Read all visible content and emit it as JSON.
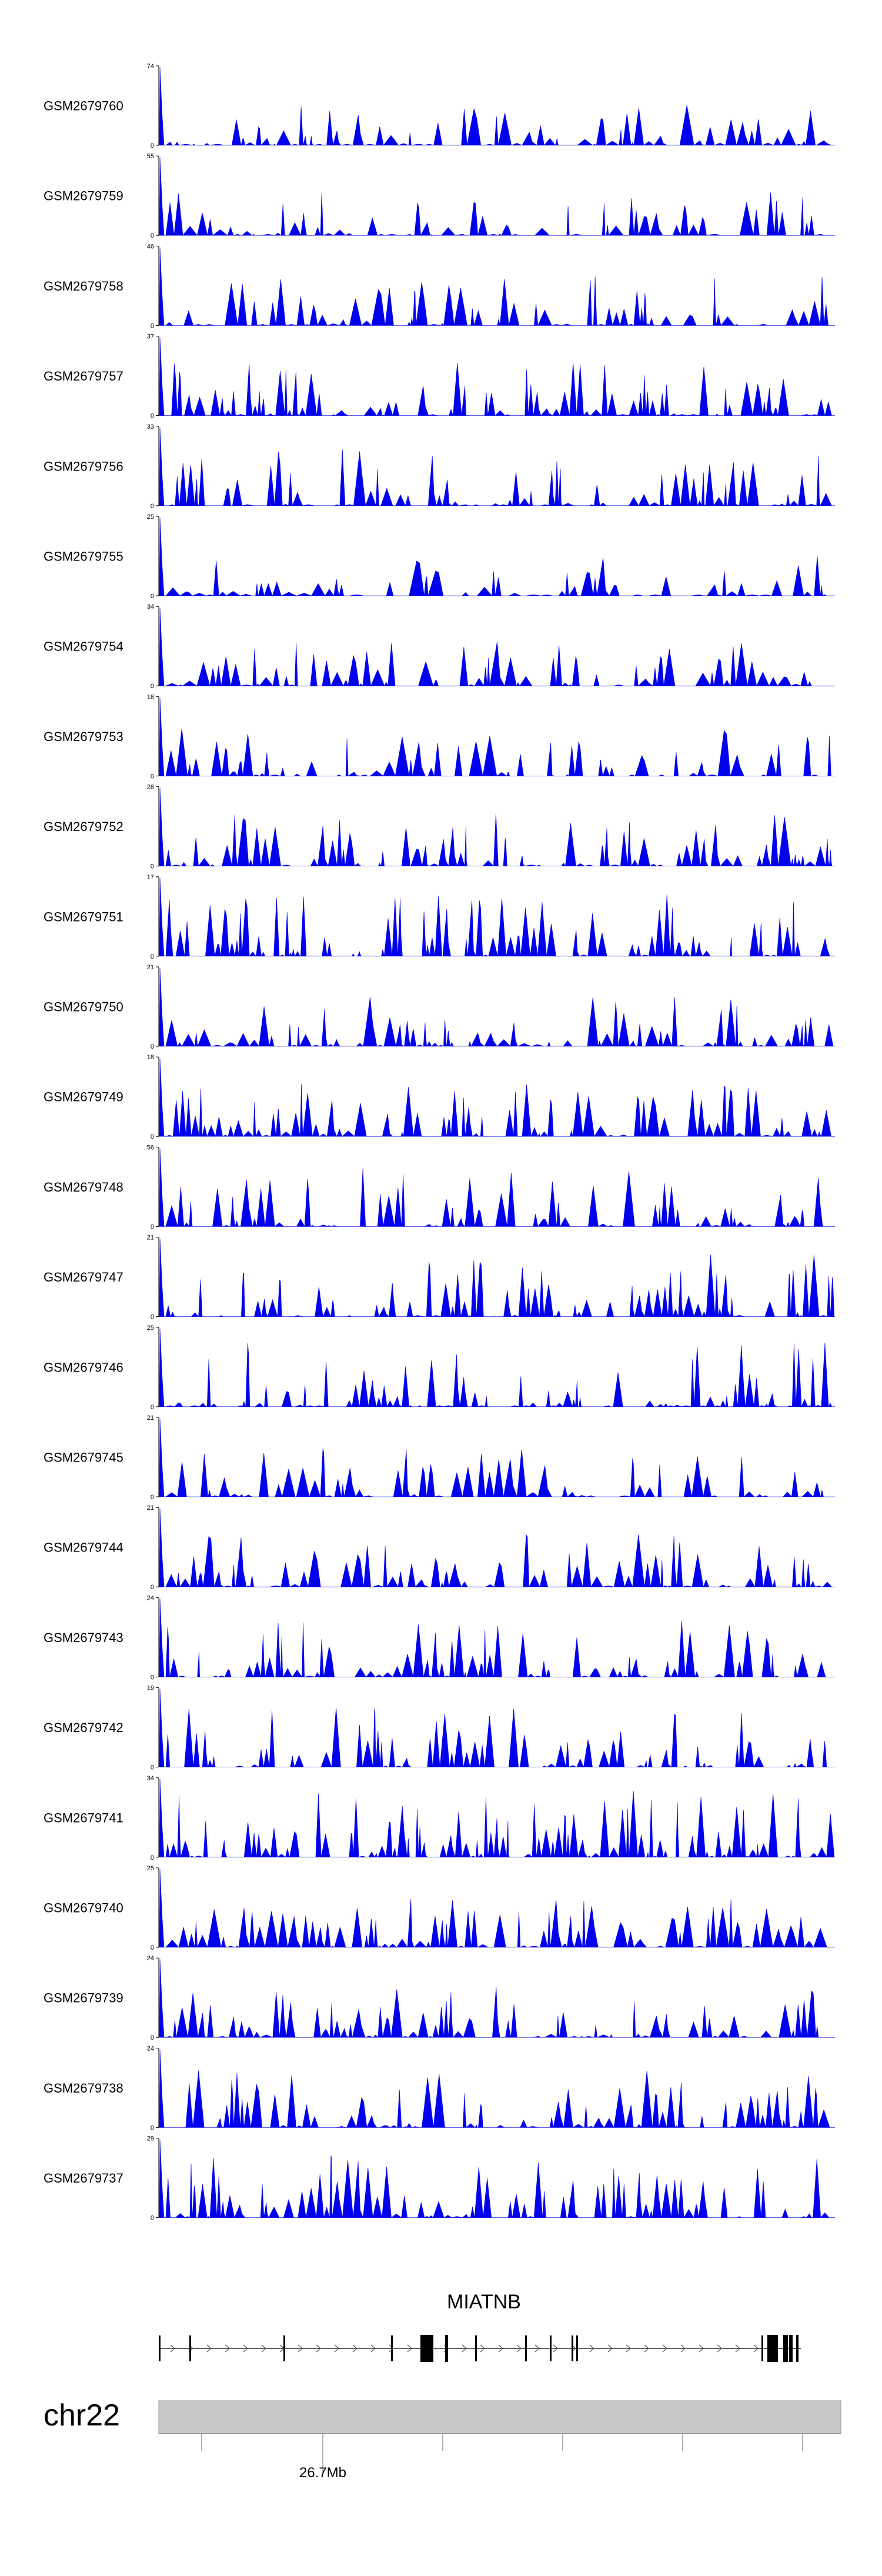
{
  "chart_data": {
    "type": "area",
    "title": "",
    "colors": {
      "signal": "#0000ee",
      "axis": "#000000",
      "ideogram": "#c8c8c8",
      "gene": "#000000"
    },
    "tracks": [
      {
        "name": "GSM2679760",
        "ymax": 74
      },
      {
        "name": "GSM2679759",
        "ymax": 55
      },
      {
        "name": "GSM2679758",
        "ymax": 46
      },
      {
        "name": "GSM2679757",
        "ymax": 37
      },
      {
        "name": "GSM2679756",
        "ymax": 33
      },
      {
        "name": "GSM2679755",
        "ymax": 25
      },
      {
        "name": "GSM2679754",
        "ymax": 34
      },
      {
        "name": "GSM2679753",
        "ymax": 18
      },
      {
        "name": "GSM2679752",
        "ymax": 28
      },
      {
        "name": "GSM2679751",
        "ymax": 17
      },
      {
        "name": "GSM2679750",
        "ymax": 21
      },
      {
        "name": "GSM2679749",
        "ymax": 18
      },
      {
        "name": "GSM2679748",
        "ymax": 56
      },
      {
        "name": "GSM2679747",
        "ymax": 21
      },
      {
        "name": "GSM2679746",
        "ymax": 25
      },
      {
        "name": "GSM2679745",
        "ymax": 21
      },
      {
        "name": "GSM2679744",
        "ymax": 21
      },
      {
        "name": "GSM2679743",
        "ymax": 24
      },
      {
        "name": "GSM2679742",
        "ymax": 19
      },
      {
        "name": "GSM2679741",
        "ymax": 34
      },
      {
        "name": "GSM2679740",
        "ymax": 25
      },
      {
        "name": "GSM2679739",
        "ymax": 24
      },
      {
        "name": "GSM2679738",
        "ymax": 24
      },
      {
        "name": "GSM2679737",
        "ymax": 29
      }
    ],
    "ymin": 0,
    "gene": {
      "name": "MIATNB",
      "strand": "+"
    },
    "chromosome": "chr22",
    "axis_tick_label": "26.7Mb"
  }
}
